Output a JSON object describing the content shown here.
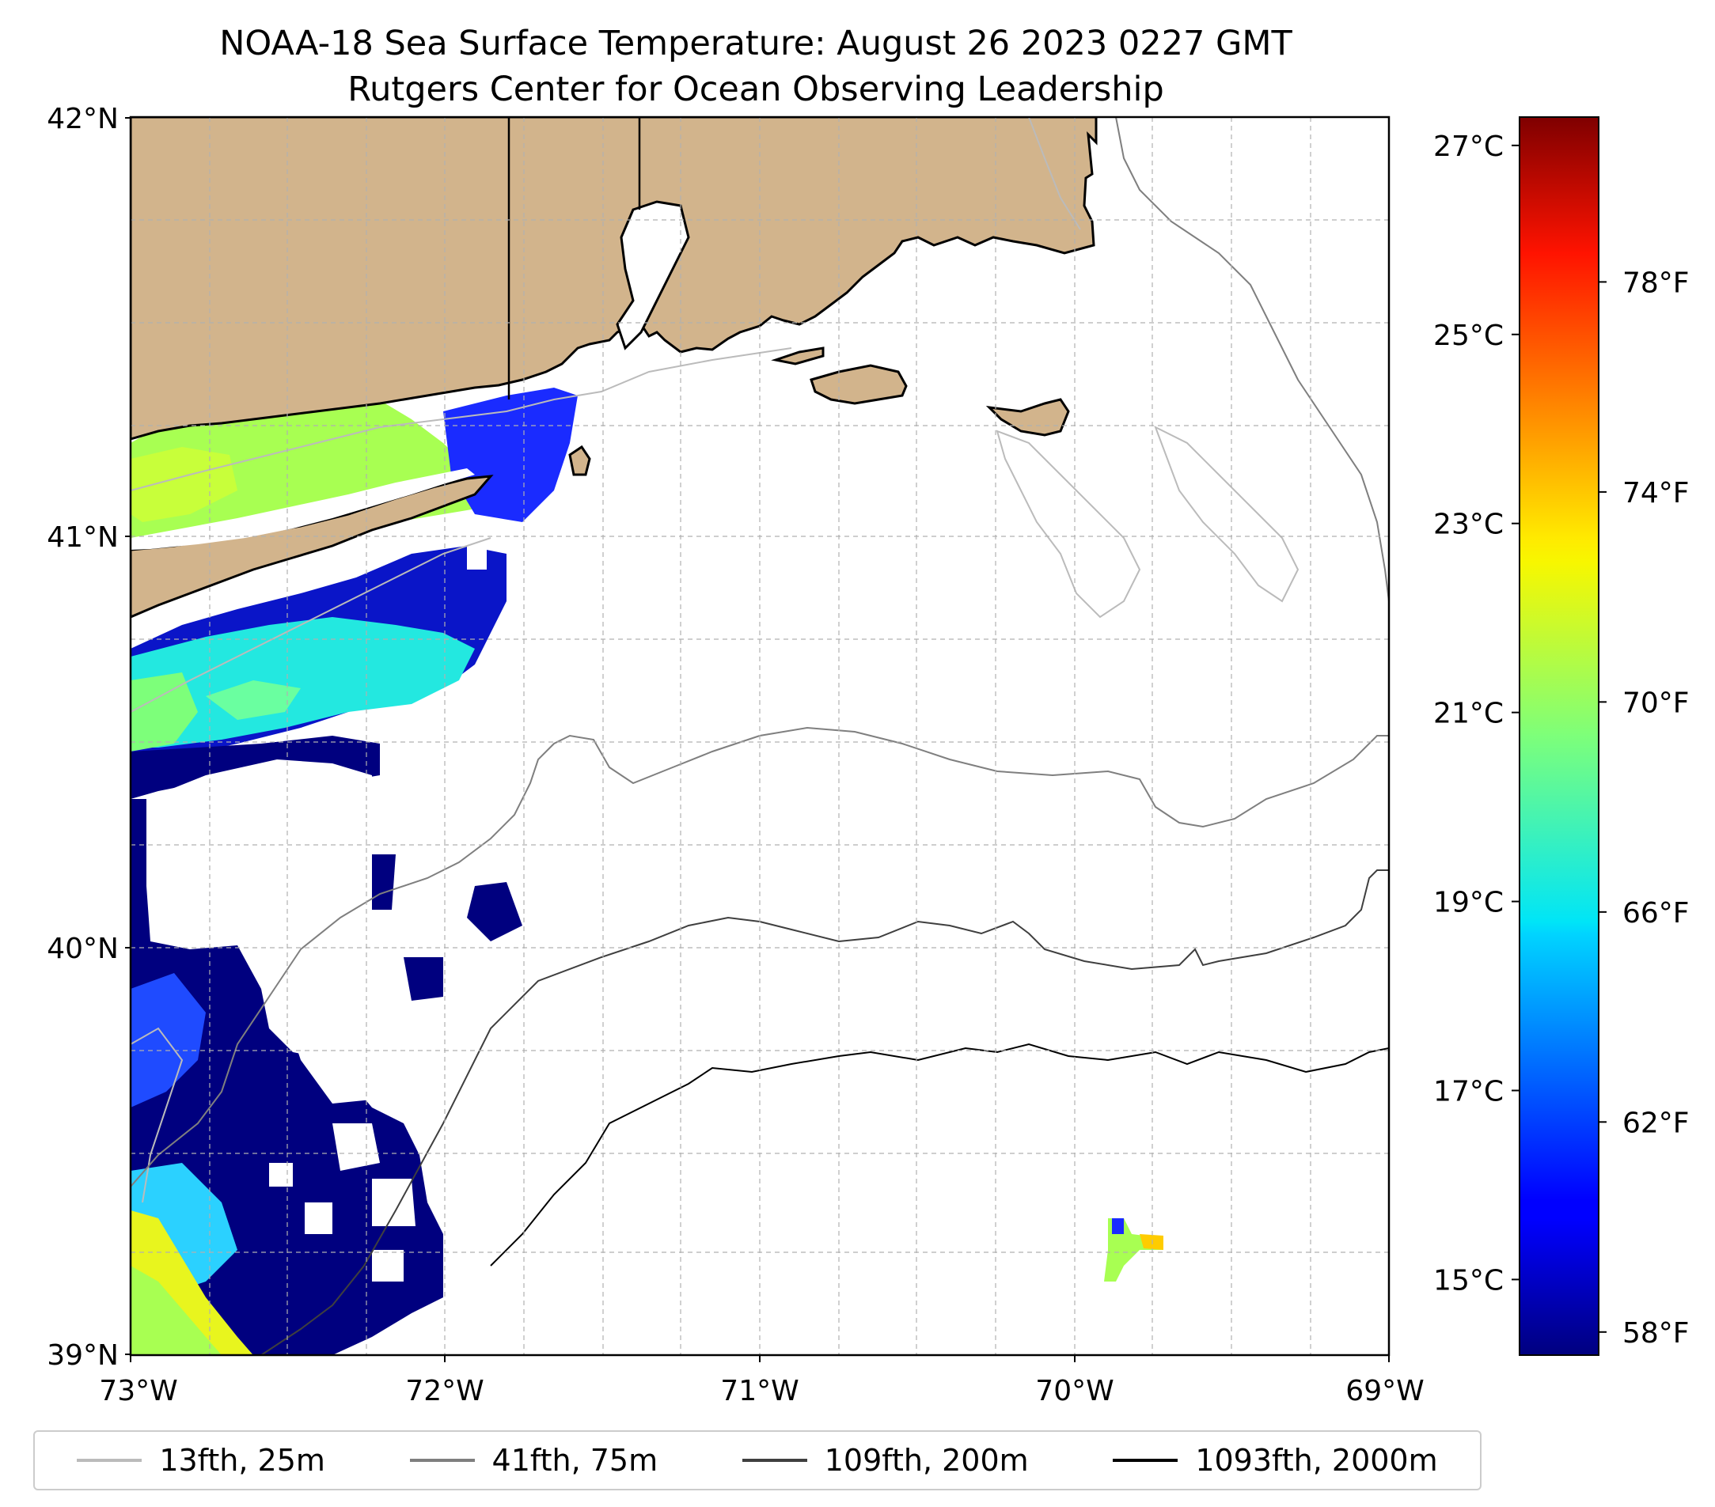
{
  "title": {
    "line1": "NOAA-18 Sea Surface Temperature: August 26 2023 0227 GMT",
    "line2": "Rutgers Center for Ocean Observing Leadership"
  },
  "map": {
    "lat_range": [
      39,
      42
    ],
    "lon_range": [
      -73,
      -69
    ],
    "lat_ticks": [
      "42°N",
      "41°N",
      "40°N",
      "39°N"
    ],
    "lon_ticks": [
      "73°W",
      "72°W",
      "71°W",
      "70°W",
      "69°W"
    ],
    "land_color": "#d2b48c",
    "grid": true
  },
  "colorbar": {
    "celsius_ticks": [
      "27°C",
      "25°C",
      "23°C",
      "21°C",
      "19°C",
      "17°C",
      "15°C"
    ],
    "fahrenheit_ticks": [
      "78°F",
      "74°F",
      "70°F",
      "66°F",
      "62°F",
      "58°F"
    ],
    "celsius_values": [
      27,
      25,
      23,
      21,
      19,
      17,
      15
    ],
    "fahrenheit_values": [
      78,
      74,
      70,
      66,
      62,
      58
    ],
    "range_c": [
      14.2,
      27.3
    ],
    "colormap": "jet"
  },
  "legend": {
    "items": [
      {
        "label": "13fth, 25m",
        "color": "#bbbbbb"
      },
      {
        "label": "41fth, 75m",
        "color": "#7f7f7f"
      },
      {
        "label": "109fth, 200m",
        "color": "#3f3f3f"
      },
      {
        "label": "1093fth, 2000m",
        "color": "#000000"
      }
    ]
  }
}
